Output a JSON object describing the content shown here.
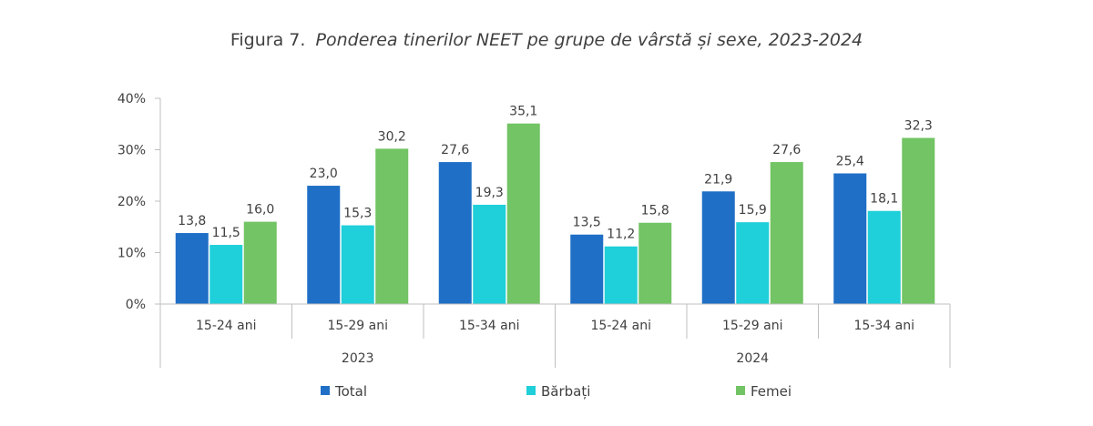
{
  "chart_data": {
    "type": "bar",
    "title_prefix": "Figura 7.",
    "title": "Ponderea tinerilor NEET pe grupe de vârstă și sexe, 2023-2024",
    "groups": [
      {
        "label": "2023",
        "categories": [
          "15-24 ani",
          "15-29 ani",
          "15-34 ani"
        ]
      },
      {
        "label": "2024",
        "categories": [
          "15-24 ani",
          "15-29 ani",
          "15-34 ani"
        ]
      }
    ],
    "categories": [
      "15-24 ani",
      "15-29 ani",
      "15-34 ani",
      "15-24 ani",
      "15-29 ani",
      "15-34 ani"
    ],
    "series": [
      {
        "name": "Total",
        "color": "#1f6fc6",
        "values": [
          13.8,
          23.0,
          27.6,
          13.5,
          21.9,
          25.4
        ],
        "labels": [
          "13,8",
          "23,0",
          "27,6",
          "13,5",
          "21,9",
          "25,4"
        ]
      },
      {
        "name": "Bărbați",
        "color": "#1fcfd9",
        "values": [
          11.5,
          15.3,
          19.3,
          11.2,
          15.9,
          18.1
        ],
        "labels": [
          "11,5",
          "15,3",
          "19,3",
          "11,2",
          "15,9",
          "18,1"
        ]
      },
      {
        "name": "Femei",
        "color": "#72c464",
        "values": [
          16.0,
          30.2,
          35.1,
          15.8,
          27.6,
          32.3
        ],
        "labels": [
          "16,0",
          "30,2",
          "35,1",
          "15,8",
          "27,6",
          "32,3"
        ]
      }
    ],
    "y_ticks": [
      "0%",
      "10%",
      "20%",
      "30%",
      "40%"
    ],
    "y_tick_values": [
      0,
      10,
      20,
      30,
      40
    ],
    "ylim": [
      0,
      40
    ],
    "grid": false,
    "legend_position": "bottom"
  }
}
